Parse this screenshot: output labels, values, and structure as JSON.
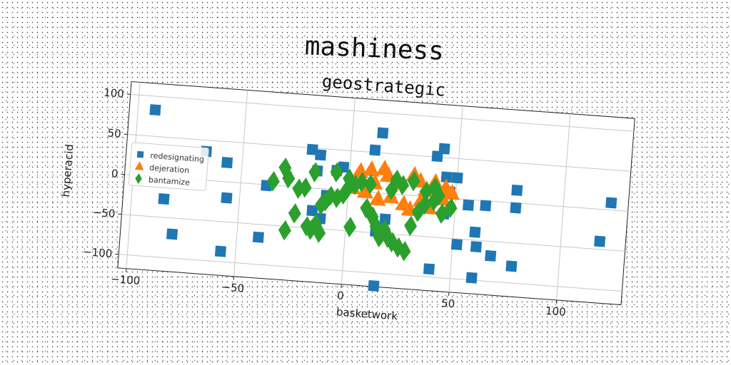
{
  "suptitle": "mashiness",
  "chart_data": {
    "type": "scatter",
    "title": "geostrategic",
    "xlabel": "basketwork",
    "ylabel": "hyperacid",
    "xlim": [
      -104,
      130
    ],
    "ylim": [
      -117,
      116
    ],
    "xticks": [
      -100,
      -50,
      0,
      50,
      100
    ],
    "yticks": [
      -100,
      -50,
      0,
      50,
      100
    ],
    "xtick_labels": [
      "−100",
      "−50",
      "0",
      "50",
      "100"
    ],
    "ytick_labels": [
      "−100",
      "−50",
      "0",
      "50",
      "100"
    ],
    "grid": true,
    "legend_position": "center-left",
    "series": [
      {
        "name": "redesignating",
        "marker": "square",
        "color": "#1f77b4",
        "x": [
          -92,
          -67,
          -57,
          -85,
          -80,
          -56,
          -40,
          -57,
          -38,
          -18,
          -14,
          -15,
          -3,
          -6,
          -10,
          -16,
          -12,
          14,
          11,
          18,
          14,
          40,
          43,
          45,
          50,
          47,
          45,
          56,
          64,
          78,
          78,
          60,
          52,
          40,
          61,
          68,
          78,
          60,
          15,
          118,
          122
        ],
        "y": [
          83,
          36,
          24,
          -27,
          -70,
          -20,
          -66,
          -87,
          -1,
          48,
          42,
          22,
          29,
          24,
          -8,
          -28,
          -37,
          75,
          53,
          -32,
          -48,
          51,
          61,
          26,
          26,
          8,
          -20,
          -7,
          -6,
          16,
          -6,
          -40,
          -57,
          -90,
          -58,
          -68,
          -79,
          -97,
          -116,
          -40,
          9
        ]
      },
      {
        "name": "dejeration",
        "marker": "triangle",
        "color": "#ff7f0e",
        "x": [
          5,
          10,
          12,
          18,
          23,
          30,
          33,
          36,
          40,
          42,
          45,
          48,
          2,
          8,
          14,
          20,
          26,
          34,
          38,
          44,
          16,
          29
        ],
        "y": [
          25,
          28,
          12,
          22,
          14,
          25,
          18,
          8,
          18,
          4,
          12,
          6,
          4,
          0,
          -8,
          -4,
          -12,
          -6,
          -14,
          -2,
          30,
          -18
        ]
      },
      {
        "name": "bantamize",
        "marker": "diamond",
        "color": "#2ca02c",
        "x": [
          -30,
          -35,
          -28,
          -23,
          -20,
          -24,
          -18,
          -16,
          -14,
          -12,
          -10,
          -8,
          -5,
          -2,
          0,
          3,
          6,
          9,
          12,
          14,
          16,
          18,
          20,
          22,
          25,
          28,
          30,
          33,
          36,
          40,
          42,
          -16,
          -6,
          0,
          10,
          20,
          22,
          25,
          30,
          36,
          40,
          44,
          48,
          -28,
          -12,
          2
        ],
        "y": [
          23,
          5,
          10,
          -2,
          0,
          -33,
          -48,
          -52,
          -44,
          -20,
          -15,
          -8,
          -10,
          -5,
          4,
          8,
          12,
          -20,
          -30,
          -42,
          -55,
          -45,
          -55,
          -60,
          -66,
          -70,
          -38,
          -20,
          -10,
          -5,
          2,
          20,
          22,
          15,
          10,
          5,
          18,
          12,
          18,
          6,
          12,
          -20,
          -12,
          -55,
          -55,
          -45
        ]
      }
    ]
  }
}
